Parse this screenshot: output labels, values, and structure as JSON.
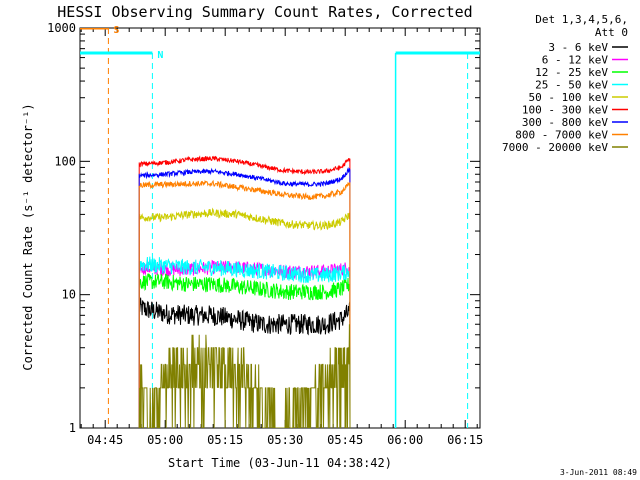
{
  "chart_data": {
    "type": "line",
    "title": "HESSI Observing Summary Count Rates, Corrected",
    "xlabel": "Start Time (03-Jun-11 04:38:42)",
    "ylabel": "Corrected Count Rate (s⁻¹ detector⁻¹)",
    "yscale": "log",
    "ylim": [
      1,
      1000
    ],
    "xlim_minutes": [
      38.7,
      138.7
    ],
    "x_unit": "minutes after 04:00",
    "x_ticks": [
      {
        "value": 45,
        "label": "04:45"
      },
      {
        "value": 60,
        "label": "05:00"
      },
      {
        "value": 75,
        "label": "05:15"
      },
      {
        "value": 90,
        "label": "05:30"
      },
      {
        "value": 105,
        "label": "05:45"
      },
      {
        "value": 120,
        "label": "06:00"
      },
      {
        "value": 135,
        "label": "06:15"
      }
    ],
    "y_ticks": [
      {
        "value": 1,
        "label": "1"
      },
      {
        "value": 10,
        "label": "10"
      },
      {
        "value": 100,
        "label": "100"
      },
      {
        "value": 1000,
        "label": "1000"
      }
    ],
    "legend": {
      "header": [
        "Det 1,3,4,5,6,",
        "Att 0"
      ],
      "position": "right"
    },
    "series": [
      {
        "name": "3 - 6 keV",
        "color": "#000000",
        "x": [
          53.5,
          60,
          66,
          72,
          78,
          84,
          90,
          96,
          100,
          104,
          106.2
        ],
        "values": [
          8,
          7.2,
          7,
          7,
          6.5,
          6,
          6,
          6,
          6,
          6.5,
          7.5
        ]
      },
      {
        "name": "6 - 12 keV",
        "color": "#ff00ff",
        "x": [
          53.5,
          60,
          66,
          72,
          78,
          84,
          90,
          96,
          100,
          104,
          106.2
        ],
        "values": [
          16,
          15.5,
          15.5,
          16,
          16,
          15.5,
          15,
          15,
          15,
          15.5,
          16
        ]
      },
      {
        "name": "12 - 25 keV",
        "color": "#00ff00",
        "x": [
          53.5,
          60,
          66,
          72,
          78,
          84,
          90,
          96,
          100,
          104,
          106.2
        ],
        "values": [
          12.5,
          12.5,
          12,
          12,
          11.5,
          11,
          10.5,
          10.5,
          10.5,
          11,
          12
        ]
      },
      {
        "name": "25 - 50 keV",
        "color": "#00ffff",
        "x": [
          53.5,
          60,
          66,
          72,
          78,
          84,
          90,
          96,
          100,
          104,
          106.2
        ],
        "values": [
          17,
          16.5,
          16,
          16,
          15.5,
          15,
          14.5,
          14,
          14,
          14.5,
          15
        ]
      },
      {
        "name": "50 - 100 keV",
        "color": "#cccc00",
        "x": [
          53.5,
          60,
          66,
          72,
          78,
          84,
          90,
          96,
          100,
          104,
          106.2
        ],
        "values": [
          38,
          38,
          40,
          41,
          40,
          37,
          34,
          33,
          33,
          35,
          40
        ]
      },
      {
        "name": "100 - 300 keV",
        "color": "#ff0000",
        "x": [
          53.5,
          60,
          66,
          72,
          78,
          84,
          90,
          96,
          100,
          104,
          106.2
        ],
        "values": [
          95,
          98,
          103,
          105,
          100,
          92,
          85,
          83,
          84,
          90,
          105
        ]
      },
      {
        "name": "300 - 800 keV",
        "color": "#0000ff",
        "x": [
          53.5,
          60,
          66,
          72,
          78,
          84,
          90,
          96,
          100,
          104,
          106.2
        ],
        "values": [
          78,
          80,
          83,
          84,
          80,
          74,
          68,
          67,
          68,
          74,
          88
        ]
      },
      {
        "name": "800 - 7000 keV",
        "color": "#ff8000",
        "x": [
          53.5,
          60,
          66,
          72,
          78,
          84,
          90,
          96,
          100,
          104,
          106.2
        ],
        "values": [
          66,
          67,
          68,
          68,
          64,
          60,
          56,
          54,
          55,
          59,
          68
        ]
      },
      {
        "name": "7000 - 20000 keV",
        "color": "#808000",
        "x": [
          53.5,
          56,
          58,
          60,
          62,
          66,
          70,
          74,
          78,
          82,
          86,
          88,
          90,
          92,
          94,
          96,
          98,
          102,
          104,
          106.2
        ],
        "values": [
          1.8,
          1.6,
          1.3,
          2.3,
          2.8,
          3.2,
          3.1,
          2.9,
          2.7,
          2.4,
          1.6,
          1.3,
          1.3,
          1.3,
          1.4,
          1.6,
          2.1,
          2.6,
          3.3,
          3.8
        ]
      }
    ],
    "flags": [
      {
        "label": "S",
        "color": "#ff8000",
        "value": 1000,
        "x_start": 38.7,
        "x_end": 45.8,
        "marker_x": 45.8
      },
      {
        "label": "N",
        "color": "#00ffff",
        "value": 650,
        "x_start": 38.7,
        "x_end": 56.8,
        "marker_x": 56.8
      },
      {
        "color": "#00ffff",
        "value": 650,
        "x_start": 117.6,
        "x_end": 138.7,
        "marker_x": 135.6
      }
    ],
    "intervals": [
      {
        "color": "#00ffff",
        "x": 117.6
      }
    ],
    "grid": false
  },
  "timestamp": "3-Jun-2011 08:49"
}
